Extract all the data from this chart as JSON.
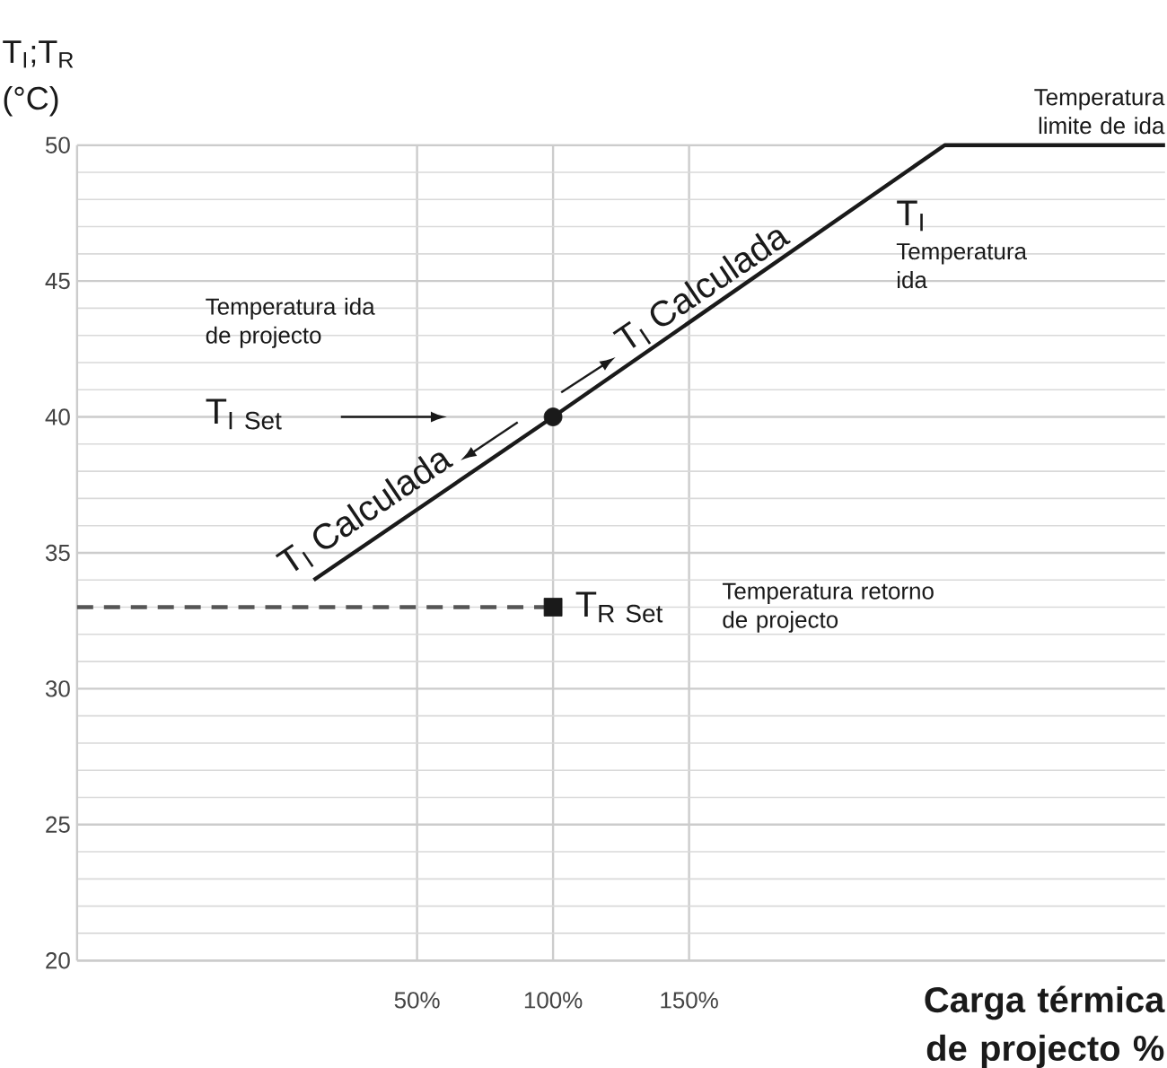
{
  "chart_data": {
    "type": "line",
    "xlabel": "Carga térmica de projecto %",
    "ylabel": "T$_{I}$;T$_{R}$ (°C)",
    "annotations": [
      "Temperatura limite de ida",
      "T$_{I}$",
      "Temperatura ida",
      "Temperatura ida de projecto",
      "\\mathrm{T}_{\\mathrm{I\\ Set}}",
      "T$_{I}$ Calculada",
      "T$_{I}$ Calculada",
      "\\mathrm{T}_{\\mathrm{R\\ Set}}",
      "Temperatura retorno de projecto"
    ],
    "series": [
      {
        "color": "#1a1a1a",
        "x": [
          12,
          100,
          244,
          325
        ],
        "values": [
          34,
          40,
          50,
          50
        ]
      },
      {
        "color": "#555555",
        "line_style": "dashed",
        "x": [
          -75,
          100
        ],
        "values": [
          33,
          33
        ]
      },
      {
        "type": "scatter",
        "marker": "circle",
        "color": "#1a1a1a",
        "x": [
          100
        ],
        "values": [
          40
        ]
      },
      {
        "type": "scatter",
        "marker": "square",
        "color": "#1a1a1a",
        "x": [
          100
        ],
        "values": [
          33
        ]
      }
    ],
    "xlim": [
      -75,
      325
    ],
    "ylim": [
      20,
      50
    ],
    "xticks": [
      {
        "value": 50,
        "label": "50%"
      },
      {
        "value": 100,
        "label": "100%"
      },
      {
        "value": 150,
        "label": "150%"
      }
    ],
    "yticks": [
      20,
      25,
      30,
      35,
      40,
      45,
      50
    ],
    "grid": true,
    "marker": "none",
    "line_style": "solid"
  }
}
